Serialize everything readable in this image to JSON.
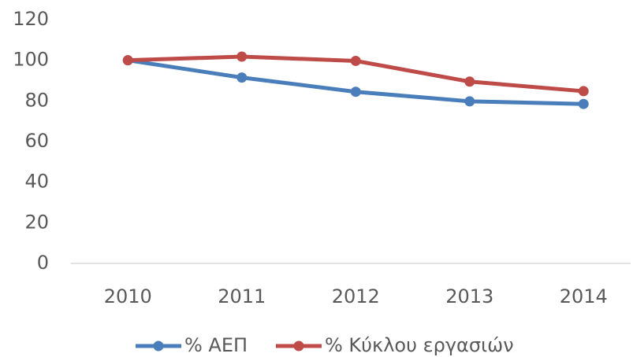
{
  "chart_data": {
    "type": "line",
    "categories": [
      "2010",
      "2011",
      "2012",
      "2013",
      "2014"
    ],
    "series": [
      {
        "name": "% ΑΕΠ",
        "color": "#4a7ebb",
        "values": [
          100,
          91.5,
          84.5,
          79.8,
          78.5
        ]
      },
      {
        "name": "% Κύκλου εργασιών",
        "color": "#be4b48",
        "values": [
          100,
          101.8,
          99.7,
          89.5,
          84.8
        ]
      }
    ],
    "ylim": [
      0,
      120
    ],
    "yticks": [
      0,
      20,
      40,
      60,
      80,
      100,
      120
    ],
    "grid": false,
    "legend": "bottom"
  }
}
